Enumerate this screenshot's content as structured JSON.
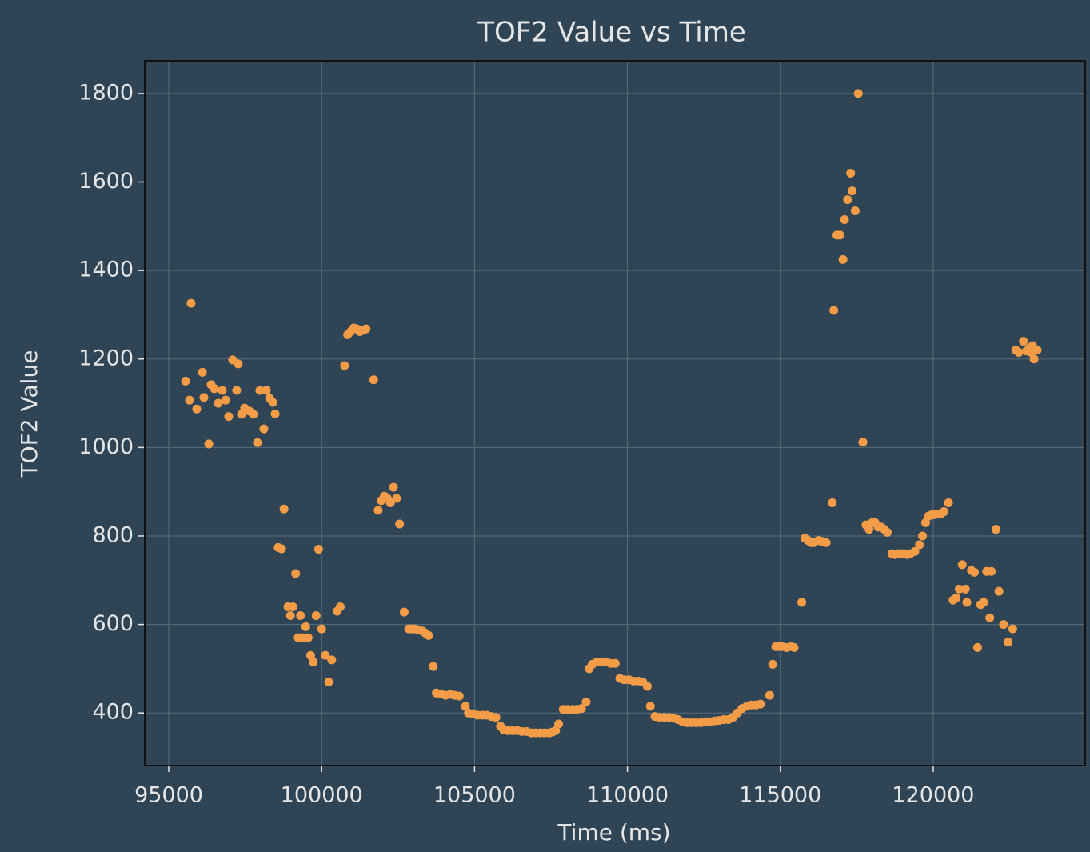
{
  "chart_data": {
    "type": "scatter",
    "title": "TOF2 Value vs Time",
    "x_label": "Time (ms)",
    "y_label": "TOF2 Value",
    "color": "#f39c48",
    "grid": true,
    "xlim": [
      94215,
      124970
    ],
    "ylim": [
      281,
      1874
    ],
    "xticks": [
      95000,
      100000,
      105000,
      110000,
      115000,
      120000
    ],
    "yticks": [
      400,
      600,
      800,
      1000,
      1200,
      1400,
      1600,
      1800
    ],
    "x": [
      95550,
      95730,
      95680,
      95915,
      96100,
      96150,
      96310,
      96385,
      96490,
      96620,
      96750,
      96860,
      96960,
      97090,
      97220,
      97270,
      97380,
      97480,
      97640,
      97770,
      97900,
      97980,
      98110,
      98190,
      98300,
      98400,
      98480,
      98580,
      98690,
      98770,
      98900,
      98980,
      99060,
      99150,
      99230,
      99310,
      99390,
      99480,
      99560,
      99640,
      99730,
      99820,
      99900,
      100000,
      100120,
      100230,
      100330,
      100510,
      100610,
      100750,
      100850,
      100950,
      101050,
      101150,
      101250,
      101350,
      101450,
      101700,
      101850,
      101950,
      102050,
      102150,
      102250,
      102350,
      102450,
      102550,
      102700,
      102850,
      102950,
      103050,
      103150,
      103300,
      103400,
      103500,
      103650,
      103750,
      103900,
      104050,
      104200,
      104350,
      104500,
      104700,
      104800,
      104950,
      105100,
      105250,
      105400,
      105550,
      105700,
      105850,
      105950,
      106100,
      106250,
      106400,
      106550,
      106700,
      106850,
      107000,
      107150,
      107300,
      107450,
      107550,
      107650,
      107750,
      107900,
      108050,
      108200,
      108350,
      108500,
      108650,
      108750,
      108850,
      109000,
      109150,
      109300,
      109450,
      109600,
      109750,
      109900,
      110050,
      110200,
      110350,
      110500,
      110650,
      110750,
      110900,
      111050,
      111200,
      111350,
      111500,
      111650,
      111800,
      111950,
      112100,
      112250,
      112400,
      112550,
      112700,
      112850,
      113000,
      113150,
      113300,
      113450,
      113600,
      113750,
      113900,
      114050,
      114200,
      114350,
      114650,
      114750,
      114850,
      114950,
      115050,
      115200,
      115350,
      115450,
      115700,
      115800,
      115900,
      116000,
      116100,
      116250,
      116350,
      116500,
      116700,
      116750,
      116850,
      116950,
      117050,
      117100,
      117200,
      117300,
      117350,
      117450,
      117550,
      117700,
      117800,
      117900,
      118000,
      118100,
      118200,
      118300,
      118400,
      118500,
      118650,
      118750,
      118850,
      118950,
      119050,
      119150,
      119250,
      119400,
      119550,
      119650,
      119750,
      119850,
      119950,
      120050,
      120150,
      120250,
      120350,
      120500,
      120650,
      120750,
      120850,
      120950,
      121050,
      121100,
      121250,
      121350,
      121450,
      121550,
      121650,
      121750,
      121850,
      121900,
      122050,
      122150,
      122300,
      122450,
      122600,
      122700,
      122800,
      122950,
      123050,
      123150,
      123200,
      123250,
      123300,
      123400
    ],
    "values": [
      1150,
      1326,
      1107,
      1087,
      1170,
      1113,
      1008,
      1142,
      1133,
      1100,
      1129,
      1107,
      1070,
      1198,
      1129,
      1189,
      1075,
      1089,
      1082,
      1075,
      1011,
      1129,
      1042,
      1129,
      1111,
      1102,
      1076,
      774,
      771,
      861,
      640,
      620,
      640,
      715,
      570,
      620,
      570,
      595,
      570,
      530,
      515,
      620,
      770,
      590,
      530,
      470,
      520,
      630,
      640,
      1185,
      1255,
      1262,
      1270,
      1268,
      1262,
      1265,
      1268,
      1153,
      858,
      880,
      890,
      885,
      875,
      910,
      885,
      827,
      628,
      590,
      590,
      590,
      588,
      585,
      580,
      575,
      505,
      445,
      443,
      440,
      442,
      440,
      438,
      415,
      400,
      398,
      395,
      395,
      395,
      392,
      390,
      370,
      362,
      360,
      360,
      360,
      358,
      358,
      355,
      355,
      355,
      355,
      355,
      357,
      360,
      375,
      408,
      408,
      408,
      408,
      410,
      425,
      500,
      510,
      515,
      515,
      515,
      512,
      512,
      478,
      475,
      475,
      472,
      472,
      470,
      460,
      415,
      392,
      390,
      390,
      390,
      388,
      385,
      380,
      378,
      378,
      378,
      378,
      380,
      380,
      382,
      383,
      385,
      385,
      390,
      400,
      410,
      415,
      418,
      418,
      420,
      440,
      510,
      550,
      550,
      550,
      548,
      550,
      548,
      650,
      795,
      790,
      785,
      785,
      790,
      788,
      785,
      875,
      1310,
      1480,
      1480,
      1425,
      1515,
      1560,
      1620,
      1580,
      1535,
      1800,
      1012,
      825,
      815,
      830,
      830,
      820,
      820,
      815,
      808,
      760,
      758,
      760,
      760,
      760,
      758,
      760,
      765,
      780,
      800,
      830,
      845,
      848,
      848,
      850,
      850,
      855,
      875,
      655,
      660,
      680,
      735,
      680,
      650,
      722,
      718,
      548,
      645,
      650,
      720,
      615,
      720,
      815,
      675,
      600,
      560,
      590,
      1220,
      1215,
      1240,
      1218,
      1225,
      1215,
      1230,
      1200,
      1220
    ]
  }
}
